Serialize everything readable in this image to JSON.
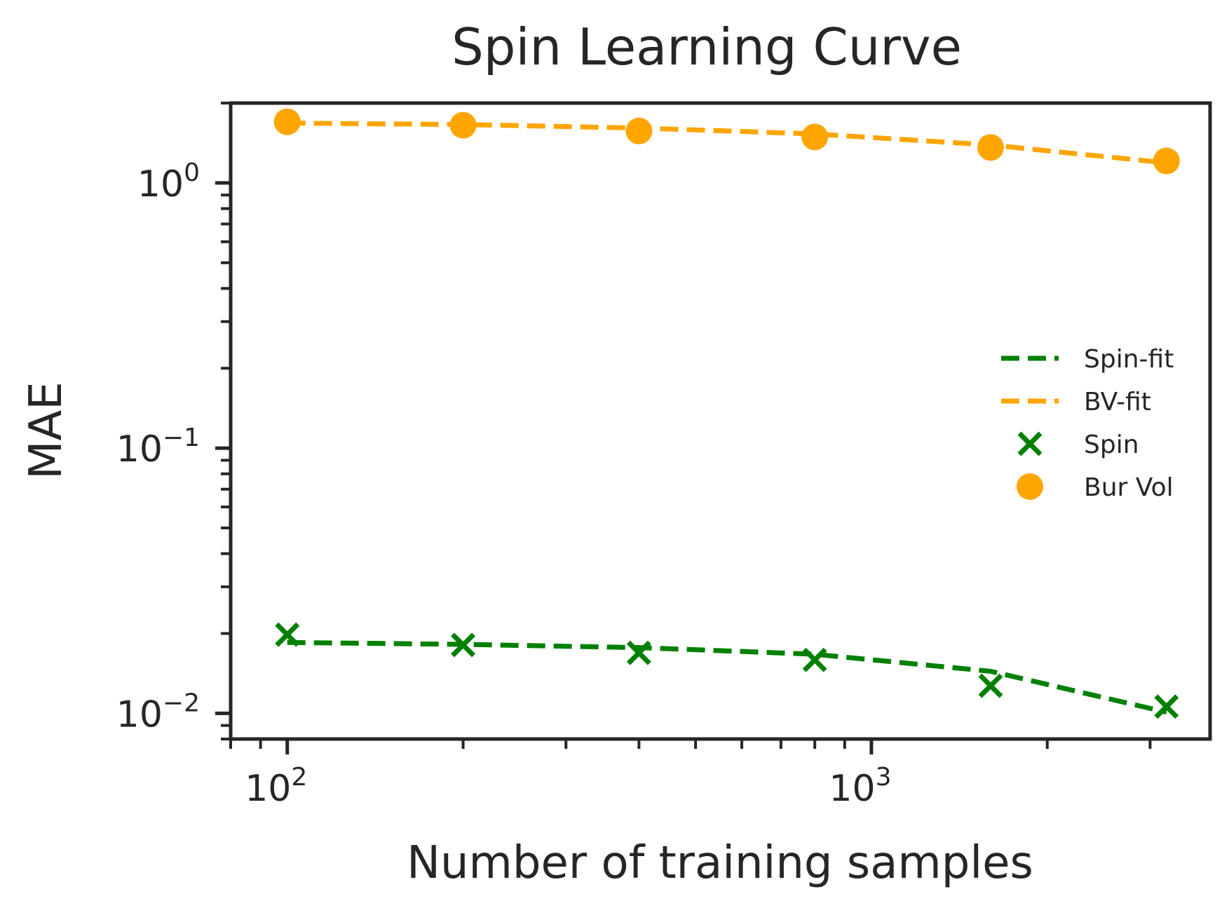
{
  "chart_data": {
    "type": "line",
    "title": "Spin Learning Curve",
    "xlabel": "Number of training samples",
    "ylabel": "MAE",
    "xscale": "log",
    "yscale": "log",
    "xlim": [
      80,
      3800
    ],
    "ylim": [
      0.008,
      2.0
    ],
    "grid": false,
    "legend_position": "center-right",
    "x_ticks": [
      {
        "value": 100,
        "base": "10",
        "exp": "2"
      },
      {
        "value": 1000,
        "base": "10",
        "exp": "3"
      }
    ],
    "y_ticks": [
      {
        "value": 1,
        "base": "10",
        "exp": "0"
      },
      {
        "value": 0.1,
        "base": "10",
        "exp": "−1"
      },
      {
        "value": 0.01,
        "base": "10",
        "exp": "−2"
      }
    ],
    "series": [
      {
        "name": "Spin-fit",
        "kind": "line",
        "style": "dashed",
        "color": "#008000",
        "x": [
          100,
          200,
          400,
          800,
          1600,
          3200
        ],
        "y": [
          0.0185,
          0.0182,
          0.0177,
          0.0167,
          0.0144,
          0.0101
        ]
      },
      {
        "name": "BV-fit",
        "kind": "line",
        "style": "dashed",
        "color": "#FFA500",
        "x": [
          100,
          200,
          400,
          800,
          1600,
          3200
        ],
        "y": [
          1.68,
          1.66,
          1.61,
          1.53,
          1.39,
          1.19
        ]
      },
      {
        "name": "Spin",
        "kind": "scatter",
        "marker": "x",
        "color": "#008000",
        "x": [
          100,
          200,
          400,
          800,
          1600,
          3200
        ],
        "y": [
          0.0198,
          0.0181,
          0.0169,
          0.0159,
          0.0127,
          0.0106
        ]
      },
      {
        "name": "Bur Vol",
        "kind": "scatter",
        "marker": "circle",
        "color": "#FFA500",
        "x": [
          100,
          200,
          400,
          800,
          1600,
          3200
        ],
        "y": [
          1.7,
          1.65,
          1.57,
          1.49,
          1.36,
          1.21
        ]
      }
    ]
  }
}
